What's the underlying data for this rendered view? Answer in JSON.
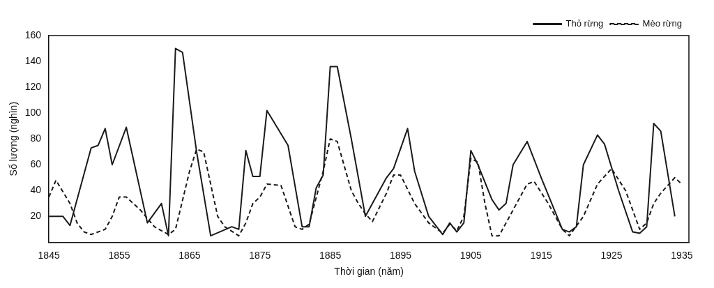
{
  "chart_data": {
    "type": "line",
    "xlabel": "Thời gian (năm)",
    "ylabel": "Số lượng (nghìn)",
    "xlim": [
      1845,
      1936
    ],
    "xticks": [
      1845,
      1855,
      1865,
      1875,
      1885,
      1895,
      1905,
      1915,
      1925,
      1935
    ],
    "ylim": [
      0,
      160
    ],
    "yticks": [
      20,
      40,
      60,
      80,
      100,
      120,
      140,
      160
    ],
    "grid": false,
    "legend": "top right",
    "marker": "none",
    "series": [
      {
        "name": "Thỏ rừng",
        "color": "#1a1a1a",
        "line_style": "solid",
        "x": [
          1845,
          1847,
          1848,
          1851,
          1852,
          1853,
          1854,
          1856,
          1859,
          1861,
          1862,
          1863,
          1864,
          1866,
          1868,
          1871,
          1872,
          1873,
          1874,
          1875,
          1876,
          1879,
          1881,
          1882,
          1883,
          1884,
          1885,
          1886,
          1888,
          1890,
          1893,
          1894,
          1896,
          1897,
          1899,
          1901,
          1902,
          1903,
          1904,
          1905,
          1906,
          1908,
          1909,
          1910,
          1911,
          1913,
          1915,
          1918,
          1919,
          1920,
          1921,
          1923,
          1924,
          1926,
          1928,
          1929,
          1930,
          1931,
          1932,
          1934
        ],
        "values": [
          20,
          20,
          13,
          73,
          75,
          88,
          60,
          89,
          15,
          30,
          5,
          150,
          147,
          70,
          5,
          12,
          10,
          71,
          51,
          51,
          102,
          75,
          12,
          12,
          42,
          52,
          136,
          136,
          80,
          20,
          50,
          57,
          88,
          55,
          20,
          6,
          15,
          8,
          15,
          71,
          60,
          33,
          25,
          30,
          60,
          78,
          50,
          10,
          8,
          12,
          60,
          83,
          76,
          40,
          8,
          7,
          12,
          92,
          86,
          20
        ]
      },
      {
        "name": "Mèo rừng",
        "color": "#1a1a1a",
        "line_style": "dashed",
        "x": [
          1845,
          1846,
          1848,
          1849,
          1850,
          1851,
          1853,
          1854,
          1855,
          1856,
          1858,
          1860,
          1862,
          1863,
          1865,
          1866,
          1867,
          1869,
          1870,
          1872,
          1873,
          1874,
          1875,
          1876,
          1878,
          1880,
          1881,
          1882,
          1884,
          1885,
          1886,
          1888,
          1889,
          1890,
          1891,
          1893,
          1894,
          1895,
          1897,
          1899,
          1901,
          1902,
          1903,
          1904,
          1905,
          1906,
          1907,
          1908,
          1909,
          1911,
          1913,
          1914,
          1916,
          1918,
          1919,
          1921,
          1923,
          1925,
          1927,
          1929,
          1930,
          1931,
          1932,
          1934,
          1935
        ],
        "values": [
          35,
          48,
          30,
          15,
          8,
          6,
          10,
          20,
          35,
          35,
          25,
          12,
          6,
          10,
          55,
          72,
          70,
          20,
          12,
          5,
          15,
          30,
          35,
          45,
          44,
          12,
          10,
          14,
          55,
          80,
          78,
          40,
          30,
          22,
          16,
          38,
          52,
          52,
          30,
          15,
          7,
          14,
          9,
          20,
          65,
          62,
          30,
          5,
          5,
          25,
          45,
          47,
          30,
          10,
          5,
          20,
          45,
          57,
          40,
          10,
          15,
          30,
          38,
          50,
          45
        ]
      }
    ]
  }
}
